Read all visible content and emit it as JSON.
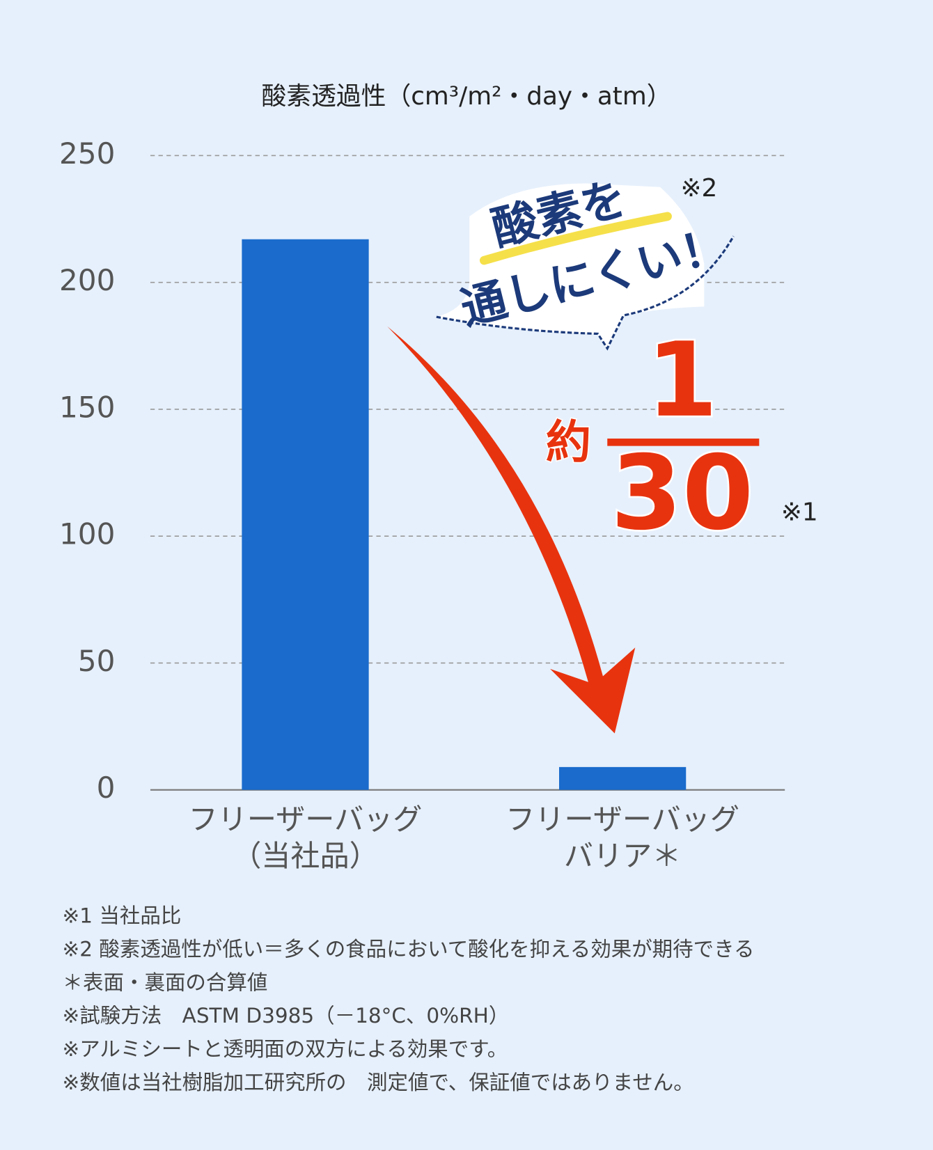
{
  "chart_data": {
    "type": "bar",
    "title": "酸素透過性（cm³/m²・day・atm）",
    "categories": [
      [
        "フリーザーバッグ",
        "（当社品）"
      ],
      [
        "フリーザーバッグ",
        "バリア＊"
      ]
    ],
    "values": [
      217,
      9
    ],
    "color": "#1a6bcc",
    "ylim": [
      0,
      250
    ],
    "yticks": [
      0,
      50,
      100,
      150,
      200,
      250
    ],
    "grid": true,
    "annotations": {
      "callout": {
        "lines": [
          "酸素を",
          "通しにくい！"
        ],
        "note": "※2"
      },
      "ratio": {
        "prefix": "約",
        "numerator": 1,
        "denominator": 30,
        "note": "※1"
      }
    }
  },
  "footnotes": [
    "※1 当社品比",
    "※2 酸素透過性が低い＝多くの食品において酸化を抑える効果が期待できる",
    "＊表面・裏面の合算値",
    "※試験方法　ASTM D3985（－18°C、0%RH）",
    "※アルミシートと透明面の双方による効果です。",
    "※数値は当社樹脂加工研究所の　測定値で、保証値ではありません。"
  ]
}
